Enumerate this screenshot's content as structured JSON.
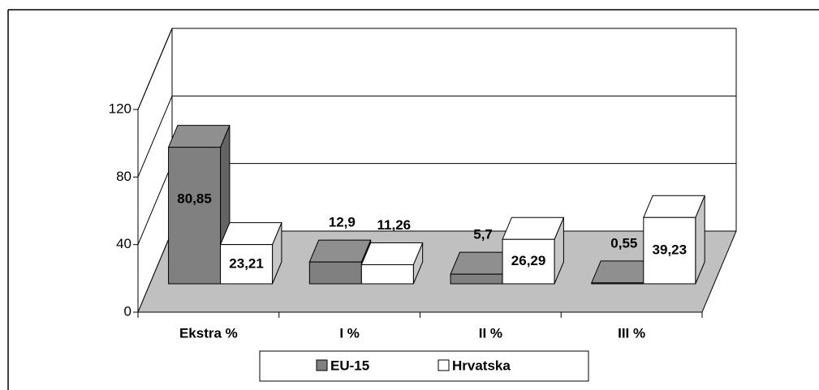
{
  "chart_data": {
    "type": "bar3d",
    "categories": [
      "Ekstra %",
      "I %",
      "II %",
      "III %"
    ],
    "series": [
      {
        "name": "EU-15",
        "color": "#808080",
        "values": [
          80.85,
          12.9,
          5.7,
          0.55
        ],
        "value_labels": [
          "80,85",
          "12,9",
          "5,7",
          "0,55"
        ]
      },
      {
        "name": "Hrvatska",
        "color": "#ffffff",
        "values": [
          23.21,
          11.26,
          26.29,
          39.23
        ],
        "value_labels": [
          "23,21",
          "11,26",
          "26,29",
          "39,23"
        ]
      }
    ],
    "ylim": [
      0,
      120
    ],
    "yticks": [
      0,
      40,
      80,
      120
    ],
    "grid": true,
    "legend": "bottom"
  }
}
